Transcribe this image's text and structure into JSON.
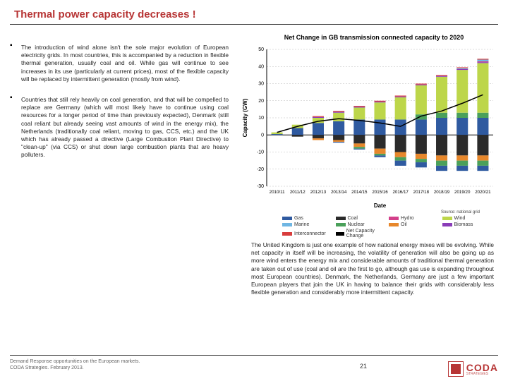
{
  "title": "Thermal power capacity decreases !",
  "chart_title": "Net Change in GB transmission connected capacity to 2020",
  "bullets": [
    "The introduction of wind alone isn't the sole major evolution of European electricity grids. In most countries, this is accompanied by a reduction in flexible thermal generation, usually coal and oil. While gas will continue to see increases in its use (particularly at current prices), most of the flexible capacity will be replaced by intermittent generation (mostly from wind).",
    "Countries that still rely heavily on coal generation, and that will be compelled to replace are Germany (which will most likely have to continue using coal resources for a longer period of time than previously expected), Denmark (still coal reliant but already seeing vast amounts of wind in the energy mix), the Netherlands (traditionally coal reliant, moving to gas, CCS, etc.) and the UK which has already passed a directive (Large Combustion Plant Directive) to \"clean-up\" (via CCS) or shut down large combustion plants that are heavy polluters."
  ],
  "paragraph": "The United Kingdom is just one example of how national energy mixes will be evolving. While net capacity in itself will be increasing, the volatility of generation will also be going up as more wind enters the energy mix and considerable amounts of traditional thermal generation are taken out of use (coal and oil are the first to go, although gas use is expanding throughout most European countries). Denmark, the Netherlands, Germany are just a few important European players that join the UK in having to balance their grids with considerably less flexible generation and considerably more intermittent capacity.",
  "source": "Source: national grid",
  "footer": "Demand Response opportunities on the European markets.\nCODA Strategies. February 2013.",
  "pagenum": "21",
  "logo_brand": "CODA",
  "logo_sub": "STRATEGIES",
  "chart": {
    "type": "stacked-bar",
    "xlabel": "Date",
    "ylabel": "Capacity (GW)",
    "ylim": [
      -30,
      50
    ],
    "ytick_step": 10,
    "background_color": "#ffffff",
    "grid_color": "#bbbbbb",
    "grid_dash": "2 2",
    "axis_color": "#000000",
    "axis_fontsize": 7,
    "label_fontsize": 8,
    "bar_width": 0.55,
    "categories": [
      "2010/11",
      "2011/12",
      "2012/13",
      "2013/14",
      "2014/15",
      "2015/16",
      "2016/17",
      "2017/18",
      "2018/19",
      "2019/20",
      "2020/21"
    ],
    "legend": [
      {
        "key": "gas",
        "label": "Gas",
        "color": "#2f5aa0"
      },
      {
        "key": "coal",
        "label": "Coal",
        "color": "#2b2b2b"
      },
      {
        "key": "hydro",
        "label": "Hydro",
        "color": "#d33f8a"
      },
      {
        "key": "wind",
        "label": "Wind",
        "color": "#bdd64a"
      },
      {
        "key": "marine",
        "label": "Marine",
        "color": "#6fb6e3"
      },
      {
        "key": "nuclear",
        "label": "Nuclear",
        "color": "#4aa05a"
      },
      {
        "key": "oil",
        "label": "Oil",
        "color": "#e7872b"
      },
      {
        "key": "biomass",
        "label": "Biomass",
        "color": "#8a3cb8"
      },
      {
        "key": "interconnector",
        "label": "Interconnector",
        "color": "#d83c3c"
      },
      {
        "key": "netcap",
        "label": "Net Capacity Change",
        "color": "#000000"
      }
    ],
    "series_order_pos": [
      "gas",
      "nuclear",
      "wind",
      "biomass",
      "hydro",
      "marine",
      "interconnector"
    ],
    "series_order_neg": [
      "coal",
      "oil",
      "nuclear",
      "gas"
    ],
    "data": {
      "gas_pos": [
        0.5,
        4.0,
        7.0,
        8.0,
        9.0,
        9.0,
        9.0,
        9.0,
        10.0,
        10.0,
        10.0
      ],
      "gas_neg": [
        0.0,
        0.0,
        0.0,
        -0.5,
        -0.5,
        -1.0,
        -3.0,
        -3.0,
        -3.0,
        -3.0,
        -3.0
      ],
      "nuclear_pos": [
        0.0,
        0.0,
        0.0,
        0.0,
        0.0,
        0.0,
        0.0,
        3.0,
        3.0,
        3.0,
        3.0
      ],
      "nuclear_neg": [
        0.0,
        0.0,
        0.0,
        0.0,
        -1.0,
        -1.0,
        -2.0,
        -2.0,
        -3.0,
        -3.0,
        -3.0
      ],
      "wind": [
        1.0,
        2.0,
        3.0,
        5.0,
        7.0,
        10.0,
        13.0,
        17.0,
        21.0,
        25.0,
        29.0
      ],
      "biomass": [
        0.0,
        0.0,
        0.5,
        0.5,
        0.5,
        0.5,
        0.5,
        0.5,
        0.5,
        0.5,
        0.5
      ],
      "hydro": [
        0.0,
        0.0,
        0.0,
        0.0,
        0.0,
        0.0,
        0.0,
        0.0,
        0.0,
        0.0,
        0.5
      ],
      "marine": [
        0.0,
        0.0,
        0.0,
        0.0,
        0.0,
        0.0,
        0.0,
        0.0,
        0.0,
        0.5,
        1.0
      ],
      "interconnector": [
        0.0,
        0.0,
        0.5,
        0.5,
        0.5,
        0.5,
        0.5,
        0.5,
        0.5,
        0.5,
        0.5
      ],
      "coal": [
        0.0,
        -1.0,
        -2.0,
        -3.0,
        -5.0,
        -8.0,
        -10.0,
        -11.0,
        -12.0,
        -12.0,
        -12.0
      ],
      "oil": [
        0.0,
        0.0,
        -1.0,
        -1.0,
        -2.0,
        -3.0,
        -3.0,
        -3.0,
        -3.0,
        -3.0,
        -3.0
      ],
      "netcap": [
        1.5,
        5.0,
        8.0,
        9.5,
        8.5,
        7.0,
        5.0,
        11.0,
        14.0,
        18.5,
        23.5
      ]
    }
  },
  "colors": {
    "title": "#b73535",
    "divider": "#333333",
    "text": "#222222"
  }
}
